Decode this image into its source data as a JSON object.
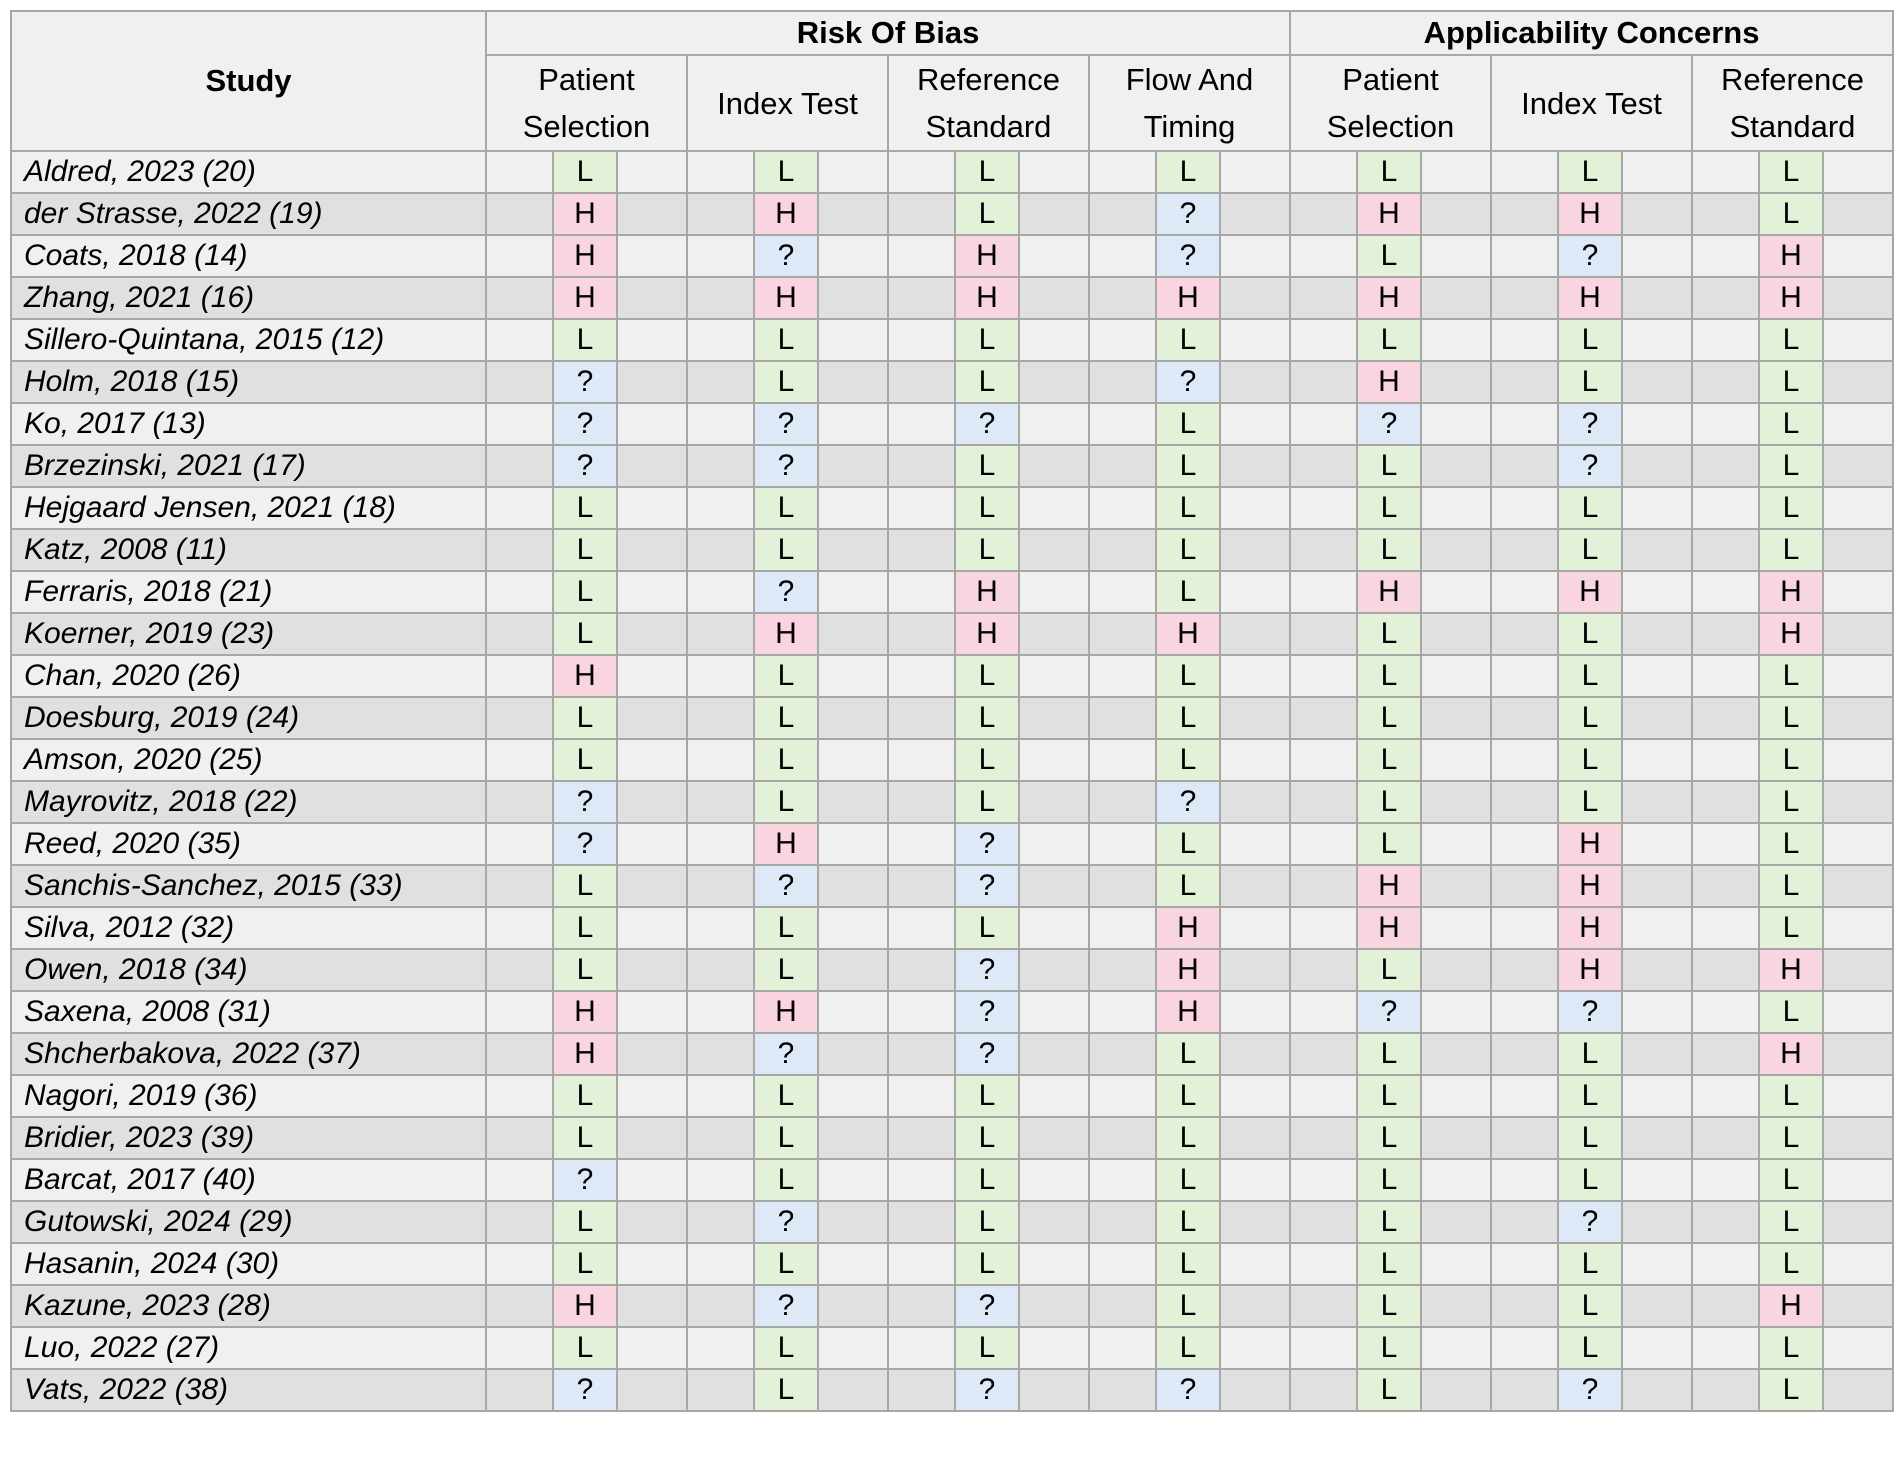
{
  "header": {
    "study": "Study",
    "risk_of_bias": "Risk Of Bias",
    "applicability": "Applicability Concerns",
    "rob_columns": [
      "Patient Selection",
      "Index Test",
      "Reference Standard",
      "Flow And Timing"
    ],
    "app_columns": [
      "Patient Selection",
      "Index Test",
      "Reference Standard"
    ]
  },
  "colors": {
    "L": "#e3f1d9",
    "H": "#f9d5df",
    "?": "#dde9f6"
  },
  "rows": [
    {
      "study": "Aldred, 2023 (20)",
      "r": [
        "L",
        "L",
        "L",
        "L",
        "L",
        "L",
        "L"
      ]
    },
    {
      "study": "der Strasse, 2022 (19)",
      "r": [
        "H",
        "H",
        "L",
        "?",
        "H",
        "H",
        "L"
      ]
    },
    {
      "study": "Coats, 2018 (14)",
      "r": [
        "H",
        "?",
        "H",
        "?",
        "L",
        "?",
        "H"
      ]
    },
    {
      "study": "Zhang, 2021 (16)",
      "r": [
        "H",
        "H",
        "H",
        "H",
        "H",
        "H",
        "H"
      ]
    },
    {
      "study": "Sillero-Quintana, 2015 (12)",
      "r": [
        "L",
        "L",
        "L",
        "L",
        "L",
        "L",
        "L"
      ]
    },
    {
      "study": "Holm, 2018 (15)",
      "r": [
        "?",
        "L",
        "L",
        "?",
        "H",
        "L",
        "L"
      ]
    },
    {
      "study": "Ko, 2017 (13)",
      "r": [
        "?",
        "?",
        "?",
        "L",
        "?",
        "?",
        "L"
      ]
    },
    {
      "study": "Brzezinski, 2021 (17)",
      "r": [
        "?",
        "?",
        "L",
        "L",
        "L",
        "?",
        "L"
      ]
    },
    {
      "study": "Hejgaard Jensen, 2021 (18)",
      "r": [
        "L",
        "L",
        "L",
        "L",
        "L",
        "L",
        "L"
      ]
    },
    {
      "study": "Katz, 2008 (11)",
      "r": [
        "L",
        "L",
        "L",
        "L",
        "L",
        "L",
        "L"
      ]
    },
    {
      "study": "Ferraris, 2018 (21)",
      "r": [
        "L",
        "?",
        "H",
        "L",
        "H",
        "H",
        "H"
      ]
    },
    {
      "study": "Koerner, 2019 (23)",
      "r": [
        "L",
        "H",
        "H",
        "H",
        "L",
        "L",
        "H"
      ]
    },
    {
      "study": "Chan, 2020 (26)",
      "r": [
        "H",
        "L",
        "L",
        "L",
        "L",
        "L",
        "L"
      ]
    },
    {
      "study": "Doesburg, 2019 (24)",
      "r": [
        "L",
        "L",
        "L",
        "L",
        "L",
        "L",
        "L"
      ]
    },
    {
      "study": "Amson, 2020 (25)",
      "r": [
        "L",
        "L",
        "L",
        "L",
        "L",
        "L",
        "L"
      ]
    },
    {
      "study": "Mayrovitz, 2018 (22)",
      "r": [
        "?",
        "L",
        "L",
        "?",
        "L",
        "L",
        "L"
      ]
    },
    {
      "study": "Reed, 2020 (35)",
      "r": [
        "?",
        "H",
        "?",
        "L",
        "L",
        "H",
        "L"
      ]
    },
    {
      "study": "Sanchis-Sanchez, 2015 (33)",
      "r": [
        "L",
        "?",
        "?",
        "L",
        "H",
        "H",
        "L"
      ]
    },
    {
      "study": "Silva, 2012 (32)",
      "r": [
        "L",
        "L",
        "L",
        "H",
        "H",
        "H",
        "L"
      ]
    },
    {
      "study": "Owen, 2018 (34)",
      "r": [
        "L",
        "L",
        "?",
        "H",
        "L",
        "H",
        "H"
      ]
    },
    {
      "study": "Saxena, 2008 (31)",
      "r": [
        "H",
        "H",
        "?",
        "H",
        "?",
        "?",
        "L"
      ]
    },
    {
      "study": "Shcherbakova, 2022 (37)",
      "r": [
        "H",
        "?",
        "?",
        "L",
        "L",
        "L",
        "H"
      ]
    },
    {
      "study": "Nagori, 2019 (36)",
      "r": [
        "L",
        "L",
        "L",
        "L",
        "L",
        "L",
        "L"
      ]
    },
    {
      "study": "Bridier, 2023 (39)",
      "r": [
        "L",
        "L",
        "L",
        "L",
        "L",
        "L",
        "L"
      ]
    },
    {
      "study": "Barcat, 2017 (40)",
      "r": [
        "?",
        "L",
        "L",
        "L",
        "L",
        "L",
        "L"
      ]
    },
    {
      "study": "Gutowski, 2024 (29)",
      "r": [
        "L",
        "?",
        "L",
        "L",
        "L",
        "?",
        "L"
      ]
    },
    {
      "study": "Hasanin, 2024 (30)",
      "r": [
        "L",
        "L",
        "L",
        "L",
        "L",
        "L",
        "L"
      ]
    },
    {
      "study": "Kazune, 2023 (28)",
      "r": [
        "H",
        "?",
        "?",
        "L",
        "L",
        "L",
        "H"
      ]
    },
    {
      "study": "Luo, 2022 (27)",
      "r": [
        "L",
        "L",
        "L",
        "L",
        "L",
        "L",
        "L"
      ]
    },
    {
      "study": "Vats, 2022 (38)",
      "r": [
        "?",
        "L",
        "?",
        "?",
        "L",
        "?",
        "L"
      ]
    }
  ]
}
